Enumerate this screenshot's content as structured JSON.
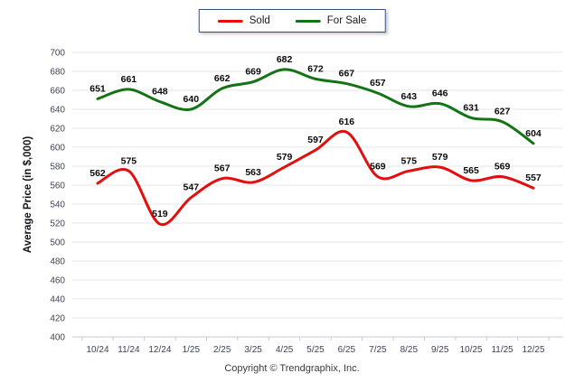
{
  "legend": {
    "items": [
      {
        "label": "Sold",
        "color": "#e30f0f"
      },
      {
        "label": "For Sale",
        "color": "#147314"
      }
    ]
  },
  "footer": {
    "copyright": "Copyright © Trendgraphix, Inc."
  },
  "colors": {
    "sold_line": "#e30f0f",
    "for_sale_line": "#147314",
    "gridline": "#e7e7e7",
    "axis": "#c3cbd8",
    "tick_label": "#3d4356",
    "data_label": "#0a0a0a",
    "legend_border": "#3a4e7a"
  },
  "chart_data": {
    "type": "line",
    "title": "",
    "xlabel": "",
    "ylabel": "Average Price (in $,000)",
    "ylim": [
      400,
      700
    ],
    "ytick_step": 20,
    "grid": true,
    "legend_position": "top-center",
    "categories": [
      "10/24",
      "11/24",
      "12/24",
      "1/25",
      "2/25",
      "3/25",
      "4/25",
      "5/25",
      "6/25",
      "7/25",
      "8/25",
      "9/25",
      "10/25",
      "11/25",
      "12/25"
    ],
    "series": [
      {
        "name": "Sold",
        "color": "#e30f0f",
        "values": [
          562,
          575,
          519,
          547,
          567,
          563,
          579,
          597,
          616,
          569,
          575,
          579,
          565,
          569,
          557
        ]
      },
      {
        "name": "For Sale",
        "color": "#147314",
        "values": [
          651,
          661,
          648,
          640,
          662,
          669,
          682,
          672,
          667,
          657,
          643,
          646,
          631,
          627,
          604
        ]
      }
    ]
  }
}
